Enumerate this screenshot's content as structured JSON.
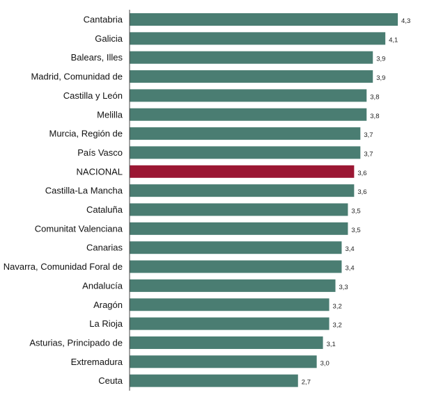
{
  "colors": {
    "bar": "#4a7d72",
    "highlight": "#9b1733",
    "axis": "#444444",
    "background": "#ffffff"
  },
  "chart_data": {
    "type": "bar",
    "orientation": "horizontal",
    "title": "",
    "xlabel": "",
    "ylabel": "",
    "xlim": [
      0,
      4.4
    ],
    "grid": false,
    "legend": "none",
    "highlight_category": "NACIONAL",
    "categories": [
      "Cantabria",
      "Galicia",
      "Balears, Illes",
      "Madrid, Comunidad de",
      "Castilla y León",
      "Melilla",
      "Murcia, Región de",
      "País Vasco",
      "NACIONAL",
      "Castilla-La Mancha",
      "Cataluña",
      "Comunitat Valenciana",
      "Canarias",
      "Navarra, Comunidad Foral de",
      "Andalucía",
      "Aragón",
      "La Rioja",
      "Asturias, Principado de",
      "Extremadura",
      "Ceuta"
    ],
    "values": [
      4.3,
      4.1,
      3.9,
      3.9,
      3.8,
      3.8,
      3.7,
      3.7,
      3.6,
      3.6,
      3.5,
      3.5,
      3.4,
      3.4,
      3.3,
      3.2,
      3.2,
      3.1,
      3.0,
      2.7
    ],
    "value_labels": [
      "4,3",
      "4,1",
      "3,9",
      "3,9",
      "3,8",
      "3,8",
      "3,7",
      "3,7",
      "3,6",
      "3,6",
      "3,5",
      "3,5",
      "3,4",
      "3,4",
      "3,3",
      "3,2",
      "3,2",
      "3,1",
      "3,0",
      "2,7"
    ]
  }
}
